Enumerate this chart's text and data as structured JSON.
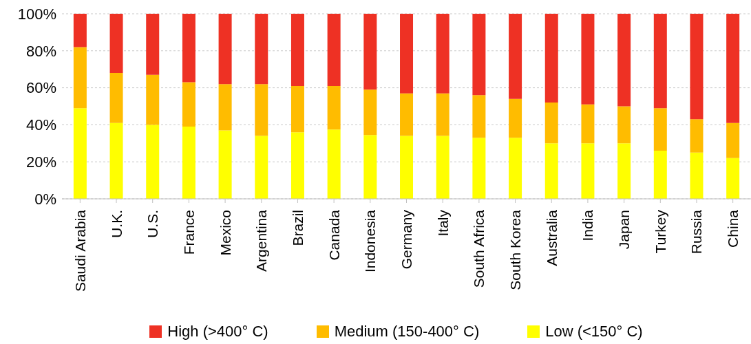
{
  "chart_data": {
    "type": "bar",
    "stacked": true,
    "categories": [
      "Saudi Arabia",
      "U.K.",
      "U.S.",
      "France",
      "Mexico",
      "Argentina",
      "Brazil",
      "Canada",
      "Indonesia",
      "Germany",
      "Italy",
      "South Africa",
      "South Korea",
      "Australia",
      "India",
      "Japan",
      "Turkey",
      "Russia",
      "China"
    ],
    "series": [
      {
        "name": "Low (<150° C)",
        "color": "#ffff00",
        "values": [
          49,
          41,
          40,
          39,
          37,
          34,
          36,
          37.5,
          34.5,
          34,
          34,
          33,
          33,
          30,
          30,
          30,
          26,
          25,
          22
        ]
      },
      {
        "name": "Medium (150-400° C)",
        "color": "#ffbc00",
        "values": [
          33,
          27,
          27,
          24,
          25,
          28,
          25,
          23.5,
          24.5,
          23,
          23,
          23,
          21,
          22,
          21,
          20,
          23,
          18,
          19
        ]
      },
      {
        "name": "High (>400° C)",
        "color": "#ee3124",
        "values": [
          18,
          32,
          33,
          37,
          38,
          38,
          39,
          39,
          41,
          43,
          43,
          44,
          46,
          48,
          49,
          50,
          51,
          57,
          59
        ]
      }
    ],
    "ylim": [
      0,
      100
    ],
    "yticks": [
      {
        "value": 0,
        "label": "0%"
      },
      {
        "value": 20,
        "label": "20%"
      },
      {
        "value": 40,
        "label": "40%"
      },
      {
        "value": 60,
        "label": "60%"
      },
      {
        "value": 80,
        "label": "80%"
      },
      {
        "value": 100,
        "label": "100%"
      }
    ],
    "grid": "y",
    "legend": "bottom"
  }
}
